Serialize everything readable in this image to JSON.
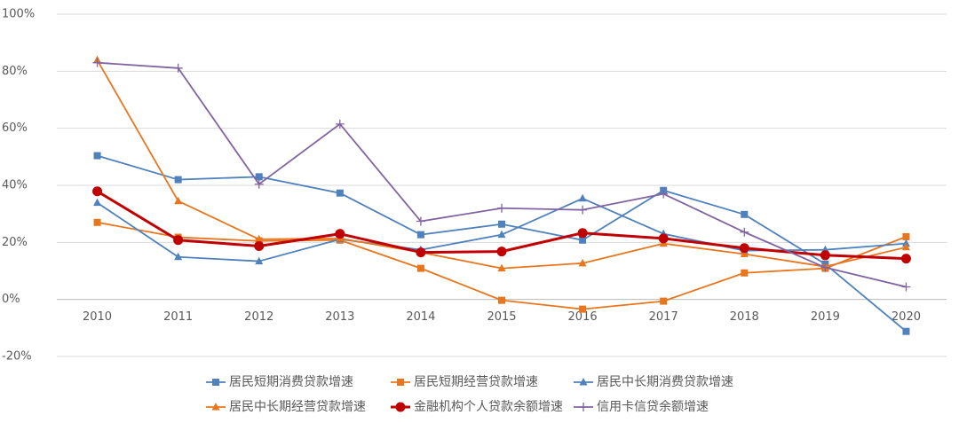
{
  "chart_data": {
    "type": "line",
    "categories": [
      "2010",
      "2011",
      "2012",
      "2013",
      "2014",
      "2015",
      "2016",
      "2017",
      "2018",
      "2019",
      "2020"
    ],
    "ylim": [
      -20,
      100
    ],
    "yticks": [
      {
        "value": -20,
        "label": "-20%"
      },
      {
        "value": 0,
        "label": "0%"
      },
      {
        "value": 20,
        "label": "20%"
      },
      {
        "value": 40,
        "label": "40%"
      },
      {
        "value": 60,
        "label": "60%"
      },
      {
        "value": 80,
        "label": "80%"
      },
      {
        "value": 100,
        "label": "100%"
      }
    ],
    "grid": true,
    "legend": "bottom",
    "series": [
      {
        "name": "居民短期消费贷款增速",
        "color": "#4f81bd",
        "marker": "square",
        "values": [
          50.4,
          42,
          43,
          37.3,
          22.7,
          26.4,
          20.8,
          38.2,
          29.8,
          12.4,
          -11.2
        ]
      },
      {
        "name": "居民短期经营贷款增速",
        "color": "#e8761e",
        "marker": "square",
        "values": [
          27,
          21.8,
          20.5,
          20.8,
          10.9,
          -0.3,
          -3.4,
          -0.6,
          9.3,
          10.9,
          22
        ]
      },
      {
        "name": "居民中长期消费贷款增速",
        "color": "#4f81bd",
        "marker": "triangle",
        "values": [
          33.9,
          14.9,
          13.4,
          21.1,
          17.4,
          22.7,
          35.4,
          23,
          17.1,
          17.4,
          19.6
        ]
      },
      {
        "name": "居民中长期经营贷款增速",
        "color": "#e8761e",
        "marker": "triangle",
        "values": [
          83.9,
          34.5,
          21.1,
          21.4,
          16.5,
          10.9,
          12.7,
          19.6,
          15.9,
          11.5,
          18.3
        ]
      },
      {
        "name": "金融机构个人贷款余额增速",
        "color": "#c00000",
        "marker": "circle",
        "values": [
          37.9,
          20.8,
          18.7,
          23,
          16.5,
          16.8,
          23.3,
          21.4,
          18,
          15.5,
          14.3
        ]
      },
      {
        "name": "信用卡信贷余额增速",
        "color": "#8064a2",
        "marker": "plus",
        "values": [
          83,
          81.1,
          40.4,
          61.5,
          27.4,
          32,
          31.4,
          37,
          23.6,
          11.2,
          4.4
        ]
      }
    ]
  }
}
